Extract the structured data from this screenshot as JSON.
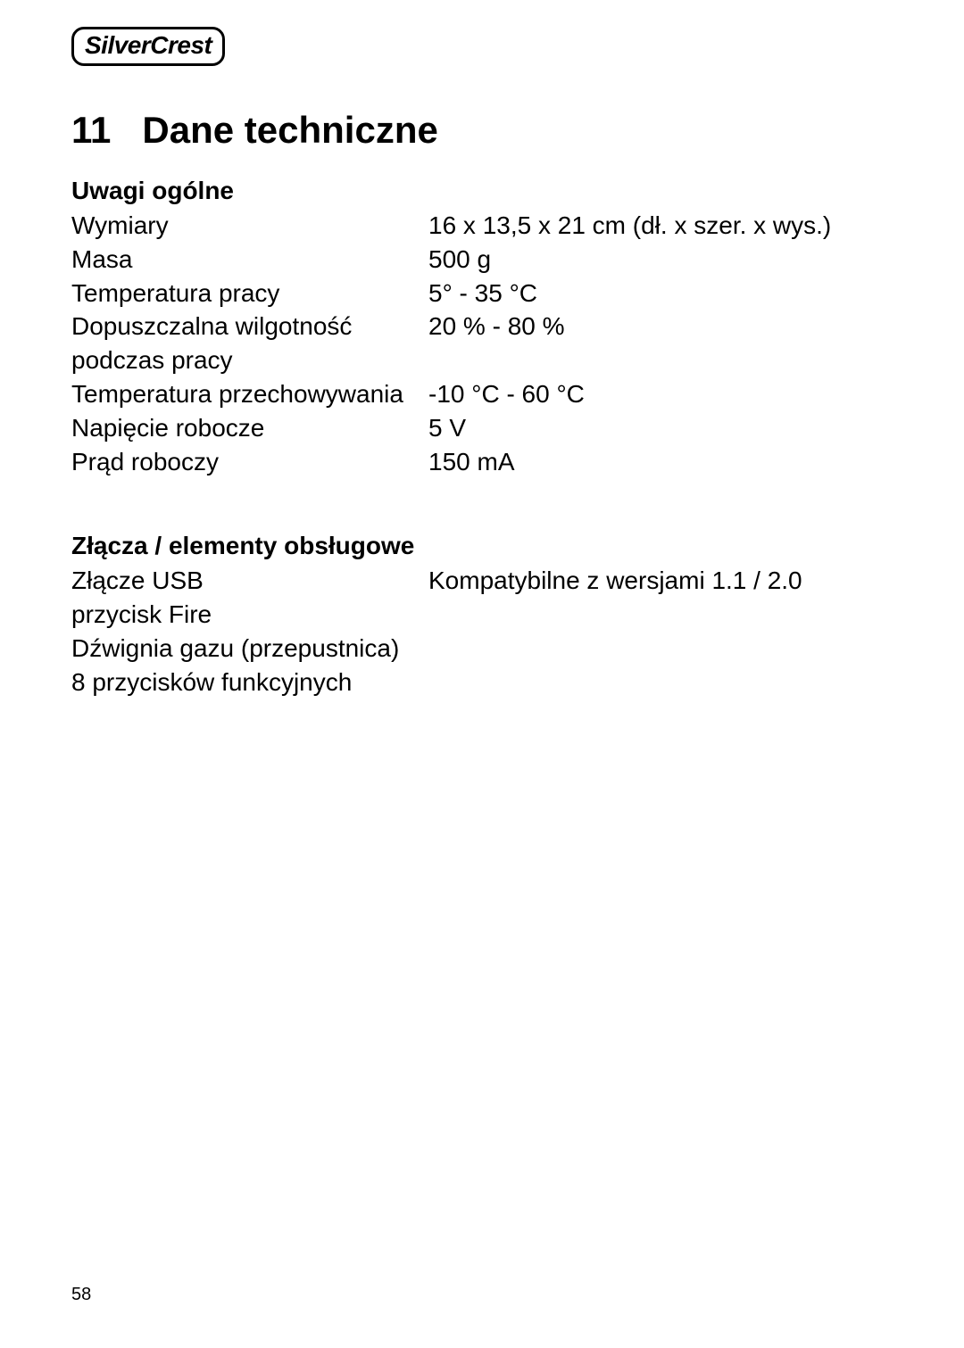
{
  "logo": {
    "text": "SilverCrest"
  },
  "section": {
    "number": "11",
    "title": "Dane techniczne"
  },
  "subsection1": {
    "title": "Uwagi ogólne",
    "rows": [
      {
        "label": "Wymiary",
        "value": "16 x 13,5 x 21 cm (dł. x szer. x wys.)"
      },
      {
        "label": "Masa",
        "value": "500 g"
      },
      {
        "label": "Temperatura pracy",
        "value": "5° - 35 °C"
      },
      {
        "label": "Dopuszczalna wilgotność podczas pracy",
        "value": "20 % - 80 %"
      },
      {
        "label": "Temperatura przechowywania",
        "value": "-10 °C - 60 °C"
      },
      {
        "label": "Napięcie robocze",
        "value": "5 V"
      },
      {
        "label": "Prąd roboczy",
        "value": "150 mA"
      }
    ]
  },
  "subsection2": {
    "title": "Złącza / elementy obsługowe",
    "rows": [
      {
        "label": "Złącze USB",
        "value": "Kompatybilne z wersjami 1.1 / 2.0"
      }
    ],
    "extra": [
      "przycisk Fire",
      "Dźwignia gazu (przepustnica)",
      "8 przycisków funkcyjnych"
    ]
  },
  "page_number": "58",
  "colors": {
    "background": "#ffffff",
    "text": "#000000",
    "border": "#000000"
  },
  "typography": {
    "title_fontsize": 42,
    "subtitle_fontsize": 28,
    "body_fontsize": 28,
    "pagenum_fontsize": 20
  }
}
